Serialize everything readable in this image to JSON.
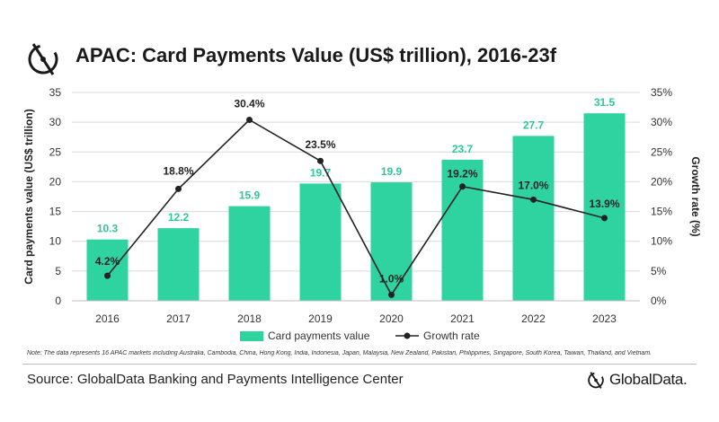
{
  "title": "APAC: Card Payments Value (US$ trillion), 2016-23f",
  "note": "Note: The data represents 16 APAC markets including Australia, Cambodia, China, Hong Kong, India, Indonesia, Japan, Malaysia, New Zealand, Pakistan, Philippines, Singapore, South Korea, Taiwan, Thailand, and Vietnam.",
  "source": "Source: GlobalData Banking and Payments Intelligence Center",
  "brand": "GlobalData.",
  "colors": {
    "bar": "#2ed3a0",
    "bar_label": "#2ec79a",
    "line": "#222222",
    "grid": "#d9d9d9"
  },
  "chart_data": {
    "type": "bar+line",
    "categories": [
      "2016",
      "2017",
      "2018",
      "2019",
      "2020",
      "2021",
      "2022",
      "2023"
    ],
    "series": [
      {
        "name": "Card payments value",
        "type": "bar",
        "axis": "left",
        "values": [
          10.3,
          12.2,
          15.9,
          19.7,
          19.9,
          23.7,
          27.7,
          31.5
        ],
        "labels": [
          "10.3",
          "12.2",
          "15.9",
          "19.7",
          "19.9",
          "23.7",
          "27.7",
          "31.5"
        ]
      },
      {
        "name": "Growth rate",
        "type": "line",
        "axis": "right",
        "values": [
          4.2,
          18.8,
          30.4,
          23.5,
          1.0,
          19.2,
          17.0,
          13.9
        ],
        "labels": [
          "4.2%",
          "18.8%",
          "30.4%",
          "23.5%",
          "1.0%",
          "19.2%",
          "17.0%",
          "13.9%"
        ]
      }
    ],
    "ylabel": "Card payments value (US$ trillion)",
    "y2label": "Growth rate (%)",
    "ylim": [
      0,
      35
    ],
    "yticks": [
      0,
      5,
      10,
      15,
      20,
      25,
      30,
      35
    ],
    "y2lim": [
      0,
      35
    ],
    "y2ticks": [
      "0%",
      "5%",
      "10%",
      "15%",
      "20%",
      "25%",
      "30%",
      "35%"
    ],
    "grid": true,
    "legend_position": "bottom"
  }
}
